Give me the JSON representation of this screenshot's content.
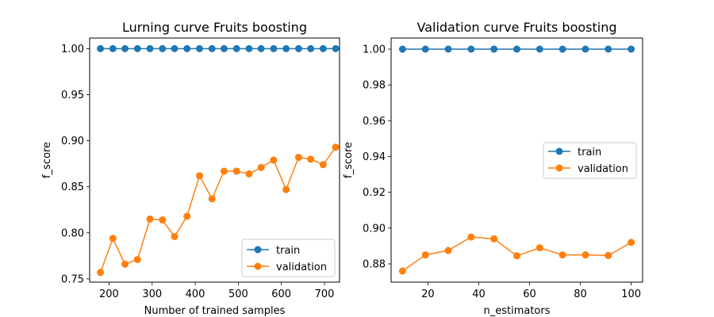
{
  "chart_data": [
    {
      "type": "line",
      "title": "Lurning curve Fruits boosting",
      "xlabel": "Number of trained samples",
      "ylabel": "f_score",
      "xlim": [
        155,
        735
      ],
      "ylim": [
        0.7465,
        1.0115
      ],
      "xticks": [
        200,
        300,
        400,
        500,
        600,
        700
      ],
      "yticks": [
        0.75,
        0.8,
        0.85,
        0.9,
        0.95,
        1.0
      ],
      "ytick_labels": [
        "0.75",
        "0.80",
        "0.85",
        "0.90",
        "0.95",
        "1.00"
      ],
      "legend_position": "lower-right",
      "x": [
        180,
        209,
        237,
        266,
        295,
        324,
        352,
        381,
        410,
        439,
        467,
        496,
        525,
        553,
        582,
        611,
        640,
        668,
        697,
        726
      ],
      "series": [
        {
          "name": "train",
          "color": "#1f77b4",
          "values": [
            1.0,
            1.0,
            1.0,
            1.0,
            1.0,
            1.0,
            1.0,
            1.0,
            1.0,
            1.0,
            1.0,
            1.0,
            1.0,
            1.0,
            1.0,
            1.0,
            1.0,
            1.0,
            1.0,
            1.0
          ]
        },
        {
          "name": "validation",
          "color": "#ff7f0e",
          "values": [
            0.757,
            0.794,
            0.766,
            0.771,
            0.815,
            0.814,
            0.796,
            0.818,
            0.862,
            0.837,
            0.867,
            0.867,
            0.864,
            0.871,
            0.879,
            0.847,
            0.882,
            0.88,
            0.874,
            0.893
          ]
        }
      ]
    },
    {
      "type": "line",
      "title": "Validation curve Fruits boosting",
      "xlabel": "n_estimators",
      "ylabel": "f_score",
      "xlim": [
        5.5,
        104.5
      ],
      "ylim": [
        0.8698,
        1.0062
      ],
      "xticks": [
        20,
        40,
        60,
        80,
        100
      ],
      "yticks": [
        0.88,
        0.9,
        0.92,
        0.94,
        0.96,
        0.98,
        1.0
      ],
      "ytick_labels": [
        "0.88",
        "0.90",
        "0.92",
        "0.94",
        "0.96",
        "0.98",
        "1.00"
      ],
      "legend_position": "center-right",
      "x": [
        10,
        19,
        28,
        37,
        46,
        55,
        64,
        73,
        82,
        91,
        100
      ],
      "series": [
        {
          "name": "train",
          "color": "#1f77b4",
          "values": [
            1.0,
            1.0,
            1.0,
            1.0,
            1.0,
            1.0,
            1.0,
            1.0,
            1.0,
            1.0,
            1.0
          ]
        },
        {
          "name": "validation",
          "color": "#ff7f0e",
          "values": [
            0.876,
            0.885,
            0.8875,
            0.895,
            0.894,
            0.8845,
            0.889,
            0.885,
            0.885,
            0.8847,
            0.892
          ]
        }
      ]
    }
  ]
}
